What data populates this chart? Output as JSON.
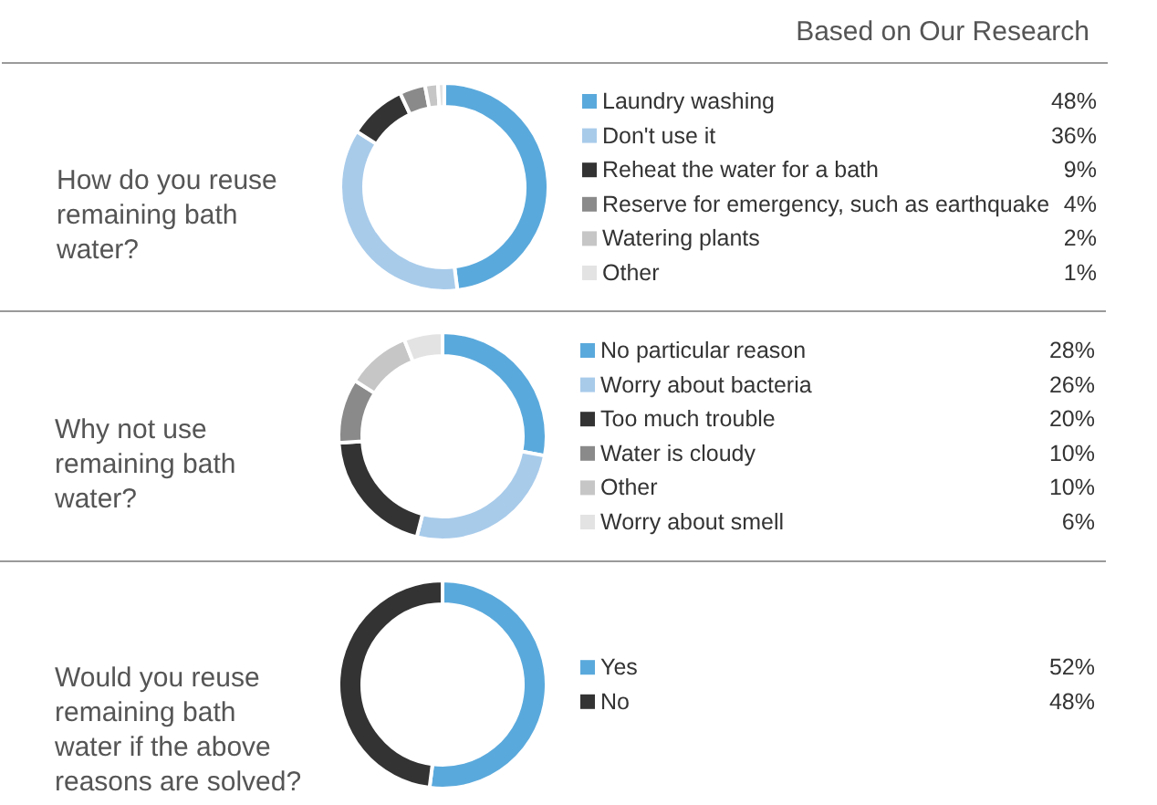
{
  "chart_data": [
    {
      "type": "donut",
      "title": "How do you reuse remaining bath water?",
      "annotations": [
        "Based on Our Research"
      ],
      "legend": "right",
      "categories": [
        "Laundry washing",
        "Don't use it",
        "Reheat the water for a bath",
        "Reserve for emergency, such as earthquake",
        "Watering plants",
        "Other"
      ],
      "values": [
        48,
        36,
        9,
        4,
        2,
        1
      ],
      "value_labels": [
        "48%",
        "36%",
        "9%",
        "4%",
        "2%",
        "1%"
      ],
      "colors": [
        "#5aa9dc",
        "#a8cbea",
        "#333333",
        "#8a8a8a",
        "#c6c6c6",
        "#e3e3e3"
      ]
    },
    {
      "type": "donut",
      "title": "Why not use remaining bath water?",
      "legend": "right",
      "categories": [
        "No particular reason",
        "Worry about bacteria",
        "Too much trouble",
        "Water is cloudy",
        "Other",
        "Worry about smell"
      ],
      "values": [
        28,
        26,
        20,
        10,
        10,
        6
      ],
      "value_labels": [
        "28%",
        "26%",
        "20%",
        "10%",
        "10%",
        "6%"
      ],
      "colors": [
        "#5aa9dc",
        "#a8cbea",
        "#333333",
        "#8a8a8a",
        "#c6c6c6",
        "#e3e3e3"
      ]
    },
    {
      "type": "donut",
      "title": "Would you reuse remaining bath water if the above reasons are solved?",
      "legend": "right",
      "categories": [
        "Yes",
        "No"
      ],
      "values": [
        52,
        48
      ],
      "value_labels": [
        "52%",
        "48%"
      ],
      "colors": [
        "#5aa9dc",
        "#333333"
      ]
    }
  ]
}
